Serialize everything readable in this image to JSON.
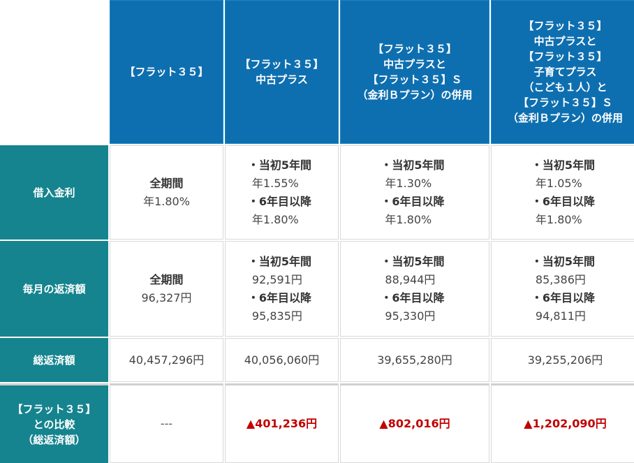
{
  "headers": [
    "",
    [
      "【フラット３５】"
    ],
    [
      "【フラット３５】",
      "中古プラス"
    ],
    [
      "【フラット３５】",
      "中古プラスと",
      "【フラット３５】Ｓ",
      "（金利Ｂプラン）の併用"
    ],
    [
      "【フラット３５】",
      "中古プラスと",
      "【フラット３５】",
      "子育てプラス",
      "（こども１人）と",
      "【フラット３５】Ｓ",
      "（金利Ｂプラン）の併用"
    ]
  ],
  "rows": {
    "rate": {
      "label": "借入金利",
      "col1": {
        "term": "全期間",
        "value": "年1.80%"
      },
      "col2": {
        "t1": "・当初5年間",
        "v1": "年1.55%",
        "t2": "・6年目以降",
        "v2": "年1.80%"
      },
      "col3": {
        "t1": "・当初5年間",
        "v1": "年1.30%",
        "t2": "・6年目以降",
        "v2": "年1.80%"
      },
      "col4": {
        "t1": "・当初5年間",
        "v1": "年1.05%",
        "t2": "・6年目以降",
        "v2": "年1.80%"
      }
    },
    "monthly": {
      "label": "毎月の返済額",
      "col1": {
        "term": "全期間",
        "value": "96,327円"
      },
      "col2": {
        "t1": "・当初5年間",
        "v1": "92,591円",
        "t2": "・6年目以降",
        "v2": "95,835円"
      },
      "col3": {
        "t1": "・当初5年間",
        "v1": "88,944円",
        "t2": "・6年目以降",
        "v2": "95,330円"
      },
      "col4": {
        "t1": "・当初5年間",
        "v1": "85,386円",
        "t2": "・6年目以降",
        "v2": "94,811円"
      }
    },
    "total": {
      "label": "総返済額",
      "values": [
        "40,457,296円",
        "40,056,060円",
        "39,655,280円",
        "39,255,206円"
      ]
    },
    "compare": {
      "label": [
        "【フラット３５】",
        "との比較",
        "（総返済額）"
      ],
      "values": [
        "---",
        "▲401,236円",
        "▲802,016円",
        "▲1,202,090円"
      ]
    }
  }
}
